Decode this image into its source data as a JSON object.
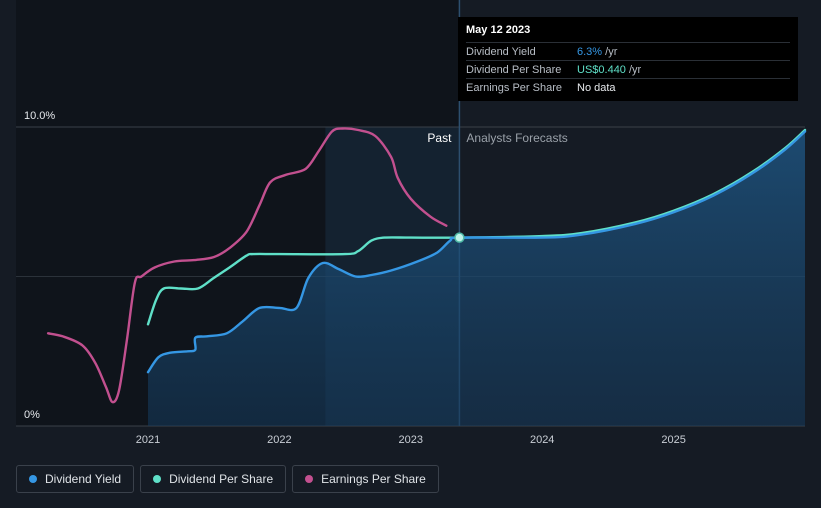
{
  "chart_data": {
    "type": "line",
    "x_range": [
      2020.2,
      2026.0
    ],
    "ylim": [
      0,
      10
    ],
    "y_ticks": [
      {
        "value": 10,
        "label": "10.0%"
      },
      {
        "value": 0,
        "label": "0%"
      }
    ],
    "x_ticks": [
      {
        "value": 2021,
        "label": "2021"
      },
      {
        "value": 2022,
        "label": "2022"
      },
      {
        "value": 2023,
        "label": "2023"
      },
      {
        "value": 2024,
        "label": "2024"
      },
      {
        "value": 2025,
        "label": "2025"
      }
    ],
    "past_label": "Past",
    "forecast_label": "Analysts Forecasts",
    "divider_x": 2023.37,
    "highlight_start_x": 2022.35,
    "gridlines": true,
    "series": [
      {
        "name": "Earnings Per Share",
        "color": "#c2508f",
        "points": [
          [
            2020.24,
            3.1
          ],
          [
            2020.35,
            3.0
          ],
          [
            2020.5,
            2.7
          ],
          [
            2020.6,
            2.1
          ],
          [
            2020.68,
            1.3
          ],
          [
            2020.73,
            0.8
          ],
          [
            2020.78,
            1.2
          ],
          [
            2020.84,
            2.9
          ],
          [
            2020.9,
            4.8
          ],
          [
            2020.95,
            5.0
          ],
          [
            2021.05,
            5.3
          ],
          [
            2021.2,
            5.5
          ],
          [
            2021.35,
            5.55
          ],
          [
            2021.5,
            5.65
          ],
          [
            2021.62,
            5.95
          ],
          [
            2021.75,
            6.5
          ],
          [
            2021.85,
            7.4
          ],
          [
            2021.93,
            8.15
          ],
          [
            2022.05,
            8.4
          ],
          [
            2022.2,
            8.6
          ],
          [
            2022.3,
            9.2
          ],
          [
            2022.4,
            9.85
          ],
          [
            2022.48,
            9.95
          ],
          [
            2022.6,
            9.9
          ],
          [
            2022.73,
            9.7
          ],
          [
            2022.85,
            9.0
          ],
          [
            2022.9,
            8.3
          ],
          [
            2023.0,
            7.6
          ],
          [
            2023.15,
            7.0
          ],
          [
            2023.27,
            6.7
          ]
        ]
      },
      {
        "name": "Dividend Per Share",
        "color": "#5fe0c8",
        "points": [
          [
            2021.0,
            3.4
          ],
          [
            2021.06,
            4.2
          ],
          [
            2021.12,
            4.6
          ],
          [
            2021.25,
            4.6
          ],
          [
            2021.38,
            4.6
          ],
          [
            2021.5,
            4.95
          ],
          [
            2021.62,
            5.3
          ],
          [
            2021.75,
            5.7
          ],
          [
            2021.8,
            5.75
          ],
          [
            2022.0,
            5.75
          ],
          [
            2022.5,
            5.75
          ],
          [
            2022.6,
            5.85
          ],
          [
            2022.7,
            6.2
          ],
          [
            2022.8,
            6.3
          ],
          [
            2023.0,
            6.3
          ],
          [
            2023.37,
            6.3
          ],
          [
            2024.0,
            6.35
          ],
          [
            2024.3,
            6.45
          ],
          [
            2024.7,
            6.8
          ],
          [
            2025.0,
            7.2
          ],
          [
            2025.3,
            7.75
          ],
          [
            2025.6,
            8.5
          ],
          [
            2025.85,
            9.3
          ],
          [
            2026.0,
            9.9
          ]
        ]
      },
      {
        "name": "Dividend Yield",
        "color": "#3597e4",
        "points": [
          [
            2021.0,
            1.8
          ],
          [
            2021.08,
            2.3
          ],
          [
            2021.17,
            2.45
          ],
          [
            2021.3,
            2.5
          ],
          [
            2021.36,
            2.55
          ],
          [
            2021.36,
            2.95
          ],
          [
            2021.45,
            3.0
          ],
          [
            2021.6,
            3.1
          ],
          [
            2021.72,
            3.5
          ],
          [
            2021.85,
            3.95
          ],
          [
            2022.0,
            3.95
          ],
          [
            2022.13,
            3.95
          ],
          [
            2022.22,
            4.95
          ],
          [
            2022.33,
            5.45
          ],
          [
            2022.45,
            5.25
          ],
          [
            2022.58,
            5.0
          ],
          [
            2022.7,
            5.05
          ],
          [
            2022.85,
            5.2
          ],
          [
            2023.05,
            5.5
          ],
          [
            2023.2,
            5.8
          ],
          [
            2023.3,
            6.2
          ],
          [
            2023.37,
            6.3
          ],
          [
            2024.0,
            6.3
          ],
          [
            2024.3,
            6.4
          ],
          [
            2024.7,
            6.75
          ],
          [
            2025.0,
            7.15
          ],
          [
            2025.3,
            7.7
          ],
          [
            2025.6,
            8.45
          ],
          [
            2025.85,
            9.25
          ],
          [
            2026.0,
            9.85
          ]
        ]
      }
    ],
    "highlight_point": {
      "x": 2023.37,
      "y": 6.3
    }
  },
  "tooltip": {
    "date": "May 12 2023",
    "rows": [
      {
        "label": "Dividend Yield",
        "value": "6.3%",
        "unit": " /yr",
        "color": "#3597e4"
      },
      {
        "label": "Dividend Per Share",
        "value": "US$0.440",
        "unit": " /yr",
        "color": "#5fe0c8"
      },
      {
        "label": "Earnings Per Share",
        "value": "No data",
        "unit": "",
        "color": "#6f757c"
      }
    ]
  },
  "legend": [
    {
      "label": "Dividend Yield",
      "color": "#3597e4"
    },
    {
      "label": "Dividend Per Share",
      "color": "#5fe0c8"
    },
    {
      "label": "Earnings Per Share",
      "color": "#c2508f"
    }
  ]
}
